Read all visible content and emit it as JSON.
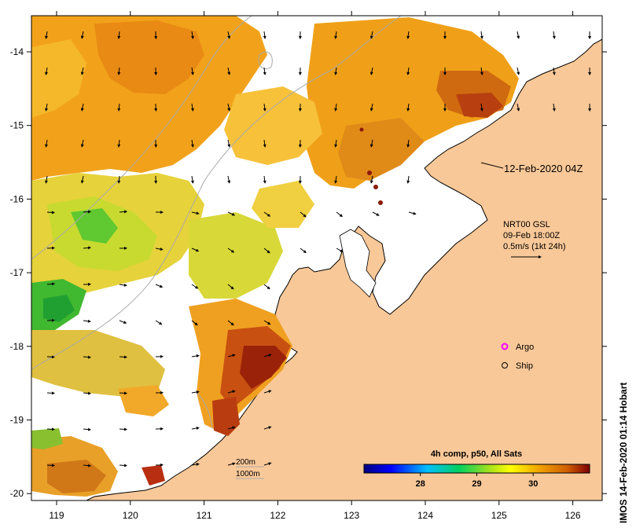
{
  "map": {
    "x_tick_labels": [
      "119",
      "120",
      "121",
      "122",
      "123",
      "124",
      "125",
      "126"
    ],
    "y_tick_labels": [
      "-14",
      "-15",
      "-16",
      "-17",
      "-18",
      "-19",
      "-20"
    ],
    "land_color": "#f9c898",
    "no_data_color": "#ffffff",
    "coast_color": "#000000",
    "bathymetry_color": "#aaaaaa"
  },
  "annotations": {
    "date_label": "12-Feb-2020 04Z",
    "current_source": "NRT00 GSL",
    "current_time": "09-Feb 18:00Z",
    "current_scale": "0.5m/s (1kt 24h)",
    "contour_200": "200m",
    "contour_1000": "1000m"
  },
  "legend": {
    "argo_label": "Argo",
    "ship_label": "Ship",
    "argo_color": "#ff00ff"
  },
  "colorbar": {
    "title": "4h comp, p50, All Sats",
    "tick_labels": [
      "28",
      "29",
      "30"
    ],
    "tick_values": [
      28,
      29,
      30
    ],
    "range": [
      27.0,
      31.0
    ]
  },
  "credit": "IMOS 14-Feb-2020 01:14 Hobart"
}
